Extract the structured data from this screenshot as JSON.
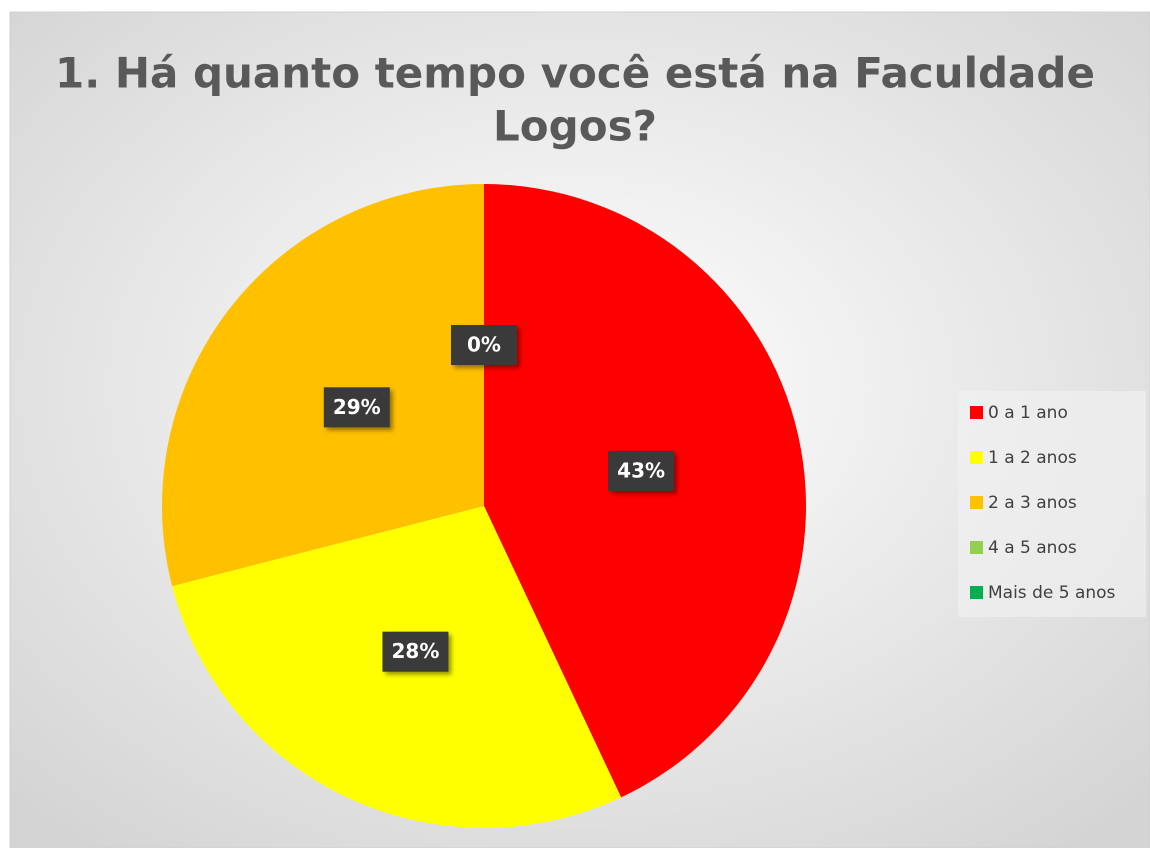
{
  "chart_data": {
    "type": "pie",
    "title": [
      "1. Há quanto tempo você está na Faculdade",
      "Logos?"
    ],
    "categories": [
      "0 a 1 ano",
      "1 a 2 anos",
      "2 a 3 anos",
      "4 a 5 anos",
      "Mais de 5 anos"
    ],
    "values": [
      43,
      28,
      29,
      0,
      0
    ],
    "value_labels": [
      "43%",
      "28%",
      "29%",
      "0%",
      null
    ],
    "colors": [
      "#ff0000",
      "#ffff00",
      "#ffc000",
      "#92d050",
      "#00b050"
    ],
    "legend": "right"
  }
}
